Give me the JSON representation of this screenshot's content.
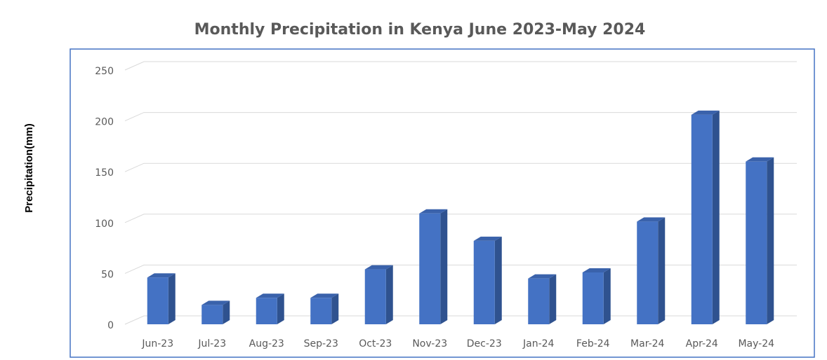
{
  "chart_data": {
    "type": "bar",
    "title": "Monthly Precipitation in Kenya June 2023-May 2024",
    "y_label": "Precipitation(mm)",
    "categories": [
      "Jun-23",
      "Jul-23",
      "Aug-23",
      "Sep-23",
      "Oct-23",
      "Nov-23",
      "Dec-23",
      "Jan-24",
      "Feb-24",
      "Mar-24",
      "Apr-24",
      "May-24"
    ],
    "values": [
      46,
      19,
      26,
      26,
      54,
      109,
      82,
      45,
      51,
      101,
      206,
      160
    ],
    "color": "#4472c4",
    "ylim": [
      0,
      250
    ],
    "yticks": [
      0,
      50,
      100,
      150,
      200,
      250
    ],
    "grid": true
  }
}
